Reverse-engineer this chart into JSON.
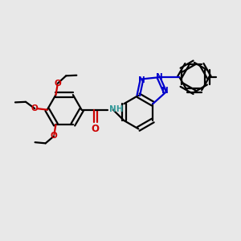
{
  "bg_color": "#e8e8e8",
  "bc": "#000000",
  "nc": "#0000cc",
  "oc": "#cc0000",
  "nhc": "#339999",
  "lw": 1.6,
  "fs": 7.5,
  "xlim": [
    0,
    10
  ],
  "ylim": [
    0,
    10
  ]
}
